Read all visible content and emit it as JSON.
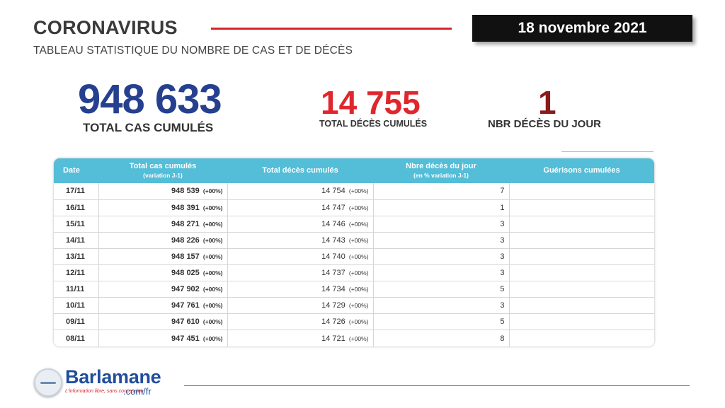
{
  "header": {
    "title": "CORONAVIRUS",
    "subtitle": "TABLEAU STATISTIQUE DU NOMBRE DE CAS ET DE DÉCÈS",
    "date": "18 novembre 2021"
  },
  "stats": {
    "cases_value": "948 633",
    "cases_label": "TOTAL CAS CUMULÉS",
    "deaths_value": "14 755",
    "deaths_label": "TOTAL DÉCÈS CUMULÉS",
    "day_value": "1",
    "day_label": "NBR DÉCÈS DU JOUR"
  },
  "colors": {
    "cases": "#26408f",
    "deaths": "#e0262d",
    "day": "#8b1a1a",
    "table_header": "#54bdd8",
    "accent_line": "#d9252b"
  },
  "table": {
    "headers": {
      "date": "Date",
      "cases": "Total cas cumulés",
      "cases_sub": "(variation J-1)",
      "deaths": "Total décès cumulés",
      "day": "Nbre décès du jour",
      "day_sub": "(en % variation J-1)",
      "recovered": "Guérisons cumulées"
    },
    "rows": [
      {
        "date": "17/11",
        "cases": "948 539",
        "cases_var": "(+00%)",
        "deaths": "14 754",
        "deaths_var": "(+00%)",
        "day": "7",
        "recovered": ""
      },
      {
        "date": "16/11",
        "cases": "948 391",
        "cases_var": "(+00%)",
        "deaths": "14 747",
        "deaths_var": "(+00%)",
        "day": "1",
        "recovered": ""
      },
      {
        "date": "15/11",
        "cases": "948 271",
        "cases_var": "(+00%)",
        "deaths": "14 746",
        "deaths_var": "(+00%)",
        "day": "3",
        "recovered": ""
      },
      {
        "date": "14/11",
        "cases": "948 226",
        "cases_var": "(+00%)",
        "deaths": "14 743",
        "deaths_var": "(+00%)",
        "day": "3",
        "recovered": ""
      },
      {
        "date": "13/11",
        "cases": "948 157",
        "cases_var": "(+00%)",
        "deaths": "14 740",
        "deaths_var": "(+00%)",
        "day": "3",
        "recovered": ""
      },
      {
        "date": "12/11",
        "cases": "948 025",
        "cases_var": "(+00%)",
        "deaths": "14 737",
        "deaths_var": "(+00%)",
        "day": "3",
        "recovered": ""
      },
      {
        "date": "11/11",
        "cases": "947 902",
        "cases_var": "(+00%)",
        "deaths": "14 734",
        "deaths_var": "(+00%)",
        "day": "5",
        "recovered": ""
      },
      {
        "date": "10/11",
        "cases": "947 761",
        "cases_var": "(+00%)",
        "deaths": "14 729",
        "deaths_var": "(+00%)",
        "day": "3",
        "recovered": ""
      },
      {
        "date": "09/11",
        "cases": "947 610",
        "cases_var": "(+00%)",
        "deaths": "14 726",
        "deaths_var": "(+00%)",
        "day": "5",
        "recovered": ""
      },
      {
        "date": "08/11",
        "cases": "947 451",
        "cases_var": "(+00%)",
        "deaths": "14 721",
        "deaths_var": "(+00%)",
        "day": "8",
        "recovered": ""
      }
    ]
  },
  "footer": {
    "brand": "Barlamane",
    "brand_domain": ".com/fr",
    "tagline": "L'information libre, sans concession",
    "logo_icon": "barlamane-logo-icon"
  }
}
